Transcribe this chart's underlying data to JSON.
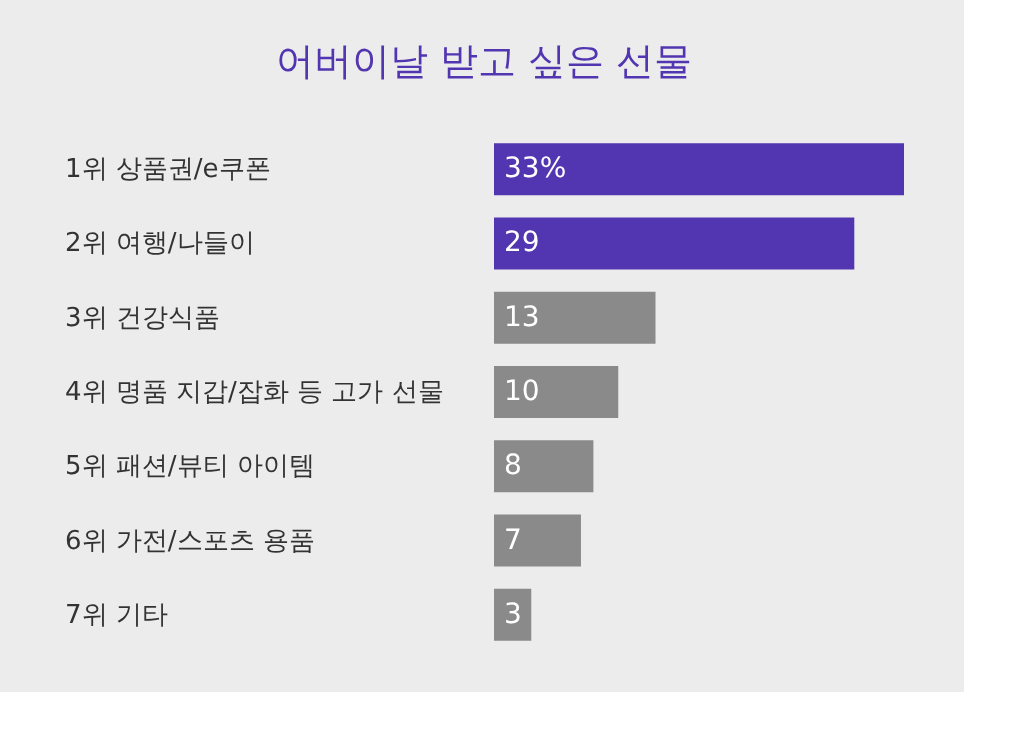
{
  "chart_data": {
    "type": "bar",
    "orientation": "horizontal",
    "title": "어버이날 받고 싶은 선물",
    "categories": [
      "1위 상품권/e쿠폰",
      "2위 여행/나들이",
      "3위 건강식품",
      "4위 명품 지갑/잡화 등 고가 선물",
      "5위 패션/뷰티 아이템",
      "6위 가전/스포츠 용품",
      "7위 기타"
    ],
    "values": [
      33,
      29,
      13,
      10,
      8,
      7,
      3
    ],
    "colors": [
      "#5235b0",
      "#5235b0",
      "#8a8a8a",
      "#8a8a8a",
      "#8a8a8a",
      "#8a8a8a",
      "#8a8a8a"
    ],
    "value_labels": [
      "33%",
      "29",
      "13",
      "10",
      "8",
      "7",
      "3"
    ],
    "xlim": [
      0,
      33
    ]
  }
}
